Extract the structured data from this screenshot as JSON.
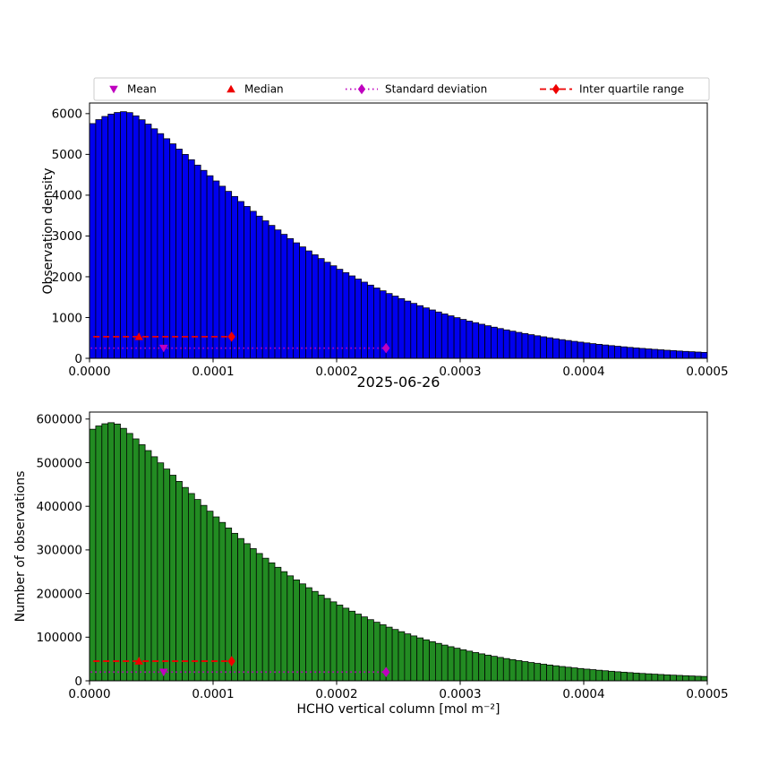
{
  "figure": {
    "background": "#ffffff"
  },
  "legend": {
    "items": [
      {
        "id": "mean",
        "label": "Mean",
        "marker": "triangle-down",
        "color": "#bf00bf",
        "line": "none"
      },
      {
        "id": "median",
        "label": "Median",
        "marker": "triangle-up",
        "color": "#ee0000",
        "line": "none"
      },
      {
        "id": "std",
        "label": "Standard deviation",
        "marker": "diamond",
        "color": "#bf00bf",
        "line": "dotted"
      },
      {
        "id": "iqr",
        "label": "Inter quartile range",
        "marker": "diamond",
        "color": "#ee0000",
        "line": "dashed"
      }
    ]
  },
  "chart_data": [
    {
      "type": "bar",
      "title": "",
      "ylabel": "Observation density",
      "xlabel": "2025-06-26",
      "bar_color": "#0000ee",
      "edge_color": "#000000",
      "grid": false,
      "legend_position": "top",
      "xlim": [
        0.0,
        0.0005
      ],
      "ylim": [
        0,
        6260
      ],
      "bin_start": 0.0,
      "bin_width": 5e-06,
      "xticks": {
        "values": [
          0.0,
          0.0001,
          0.0002,
          0.0003,
          0.0004,
          0.0005
        ],
        "labels": [
          "0.0000",
          "0.0001",
          "0.0002",
          "0.0003",
          "0.0004",
          "0.0005"
        ]
      },
      "yticks": {
        "values": [
          0,
          1000,
          2000,
          3000,
          4000,
          5000,
          6000
        ],
        "labels": [
          "0",
          "1000",
          "2000",
          "3000",
          "4000",
          "5000",
          "6000"
        ]
      },
      "values": [
        5756,
        5853,
        5931,
        5989,
        6028,
        6048,
        6025,
        5946,
        5850,
        5743,
        5628,
        5509,
        5385,
        5259,
        5130,
        5000,
        4870,
        4738,
        4608,
        4477,
        4349,
        4220,
        4094,
        3969,
        3845,
        3724,
        3605,
        3487,
        3372,
        3259,
        3148,
        3040,
        2935,
        2832,
        2732,
        2634,
        2539,
        2446,
        2356,
        2269,
        2183,
        2101,
        2021,
        1943,
        1868,
        1795,
        1724,
        1656,
        1589,
        1526,
        1464,
        1404,
        1347,
        1291,
        1237,
        1186,
        1136,
        1088,
        1042,
        997,
        954,
        913,
        874,
        836,
        799,
        764,
        730,
        697,
        666,
        636,
        607,
        580,
        553,
        528,
        504,
        480,
        458,
        437,
        416,
        397,
        378,
        360,
        343,
        327,
        311,
        296,
        282,
        268,
        255,
        243,
        231,
        220,
        209,
        198,
        189,
        179,
        170,
        162,
        154,
        146
      ],
      "annotations": {
        "mean": {
          "x": 6e-05,
          "y": 250,
          "color": "#bf00bf"
        },
        "median": {
          "x": 4e-05,
          "y": 530,
          "color": "#ee0000"
        },
        "std": {
          "x0": 1e-06,
          "x1": 0.00024,
          "y": 250,
          "color": "#bf00bf",
          "style": "dotted"
        },
        "iqr": {
          "x0": 3e-06,
          "x1": 0.000115,
          "y": 530,
          "color": "#ee0000",
          "style": "dashed"
        }
      }
    },
    {
      "type": "bar",
      "title": "",
      "ylabel": "Number of observations",
      "xlabel": "HCHO vertical column [mol m⁻²]",
      "bar_color": "#228b22",
      "edge_color": "#000000",
      "grid": false,
      "legend_position": "none",
      "xlim": [
        0.0,
        0.0005
      ],
      "ylim": [
        0,
        616000
      ],
      "bin_start": 0.0,
      "bin_width": 5e-06,
      "xticks": {
        "values": [
          0.0,
          0.0001,
          0.0002,
          0.0003,
          0.0004,
          0.0005
        ],
        "labels": [
          "0.0000",
          "0.0001",
          "0.0002",
          "0.0003",
          "0.0004",
          "0.0005"
        ]
      },
      "yticks": {
        "values": [
          0,
          100000,
          200000,
          300000,
          400000,
          500000,
          600000
        ],
        "labels": [
          "0",
          "100000",
          "200000",
          "300000",
          "400000",
          "500000",
          "600000"
        ]
      },
      "values": [
        576700,
        584200,
        589200,
        591700,
        588600,
        578700,
        567000,
        554500,
        541200,
        527700,
        513600,
        499600,
        485400,
        471300,
        457100,
        443200,
        429300,
        415600,
        402100,
        388800,
        375700,
        363000,
        350300,
        338100,
        326100,
        314400,
        303000,
        291800,
        281000,
        270400,
        260200,
        250200,
        240600,
        231300,
        222200,
        213400,
        204900,
        196700,
        188700,
        181000,
        173600,
        166500,
        159600,
        152900,
        146500,
        140200,
        134300,
        128500,
        123000,
        117700,
        112600,
        107600,
        102900,
        98400,
        94000,
        89800,
        85800,
        81900,
        78200,
        74700,
        71200,
        68000,
        64800,
        61800,
        58900,
        56200,
        53600,
        51000,
        48600,
        46300,
        44100,
        42000,
        40000,
        38100,
        36200,
        34500,
        32800,
        31200,
        29700,
        28200,
        26800,
        25600,
        24300,
        23100,
        21900,
        20800,
        19800,
        18800,
        17800,
        16900,
        16100,
        15300,
        14500,
        13700,
        13000,
        12400,
        11700,
        11100,
        10500,
        10000
      ],
      "annotations": {
        "mean": {
          "x": 6e-05,
          "y": 20000,
          "color": "#bf00bf"
        },
        "median": {
          "x": 4e-05,
          "y": 45000,
          "color": "#ee0000"
        },
        "std": {
          "x0": 1e-06,
          "x1": 0.00024,
          "y": 20000,
          "color": "#bf00bf",
          "style": "dotted"
        },
        "iqr": {
          "x0": 3e-06,
          "x1": 0.000115,
          "y": 45000,
          "color": "#ee0000",
          "style": "dashed"
        }
      }
    }
  ]
}
